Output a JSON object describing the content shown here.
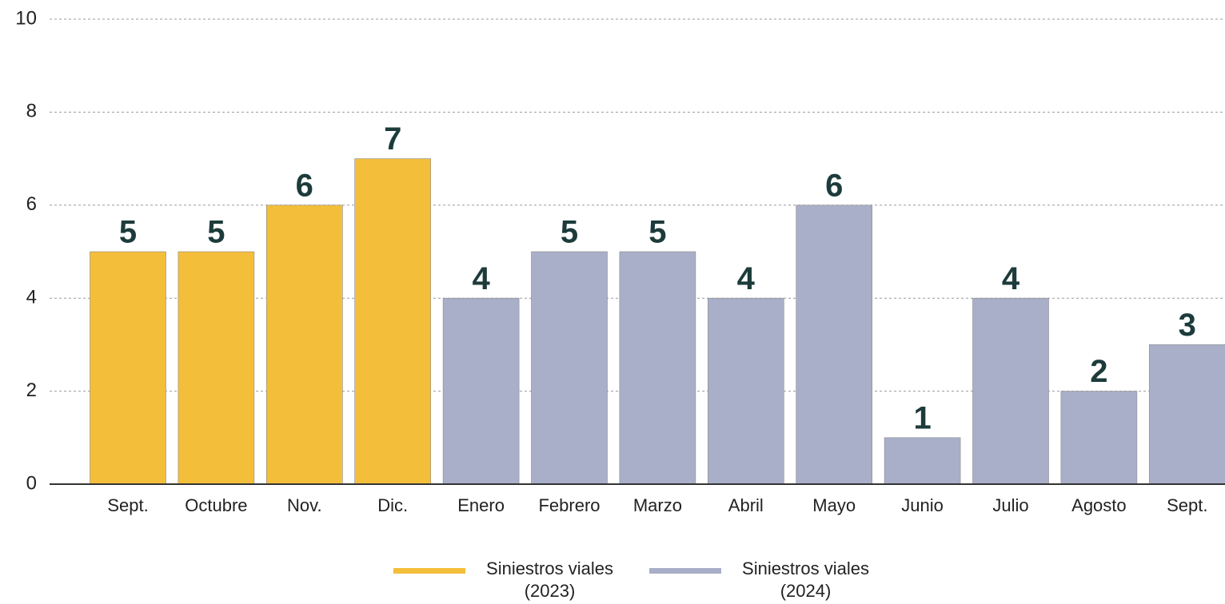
{
  "chart_data": {
    "type": "bar",
    "categories": [
      "Sept.",
      "Octubre",
      "Nov.",
      "Dic.",
      "Enero",
      "Febrero",
      "Marzo",
      "Abril",
      "Mayo",
      "Junio",
      "Julio",
      "Agosto",
      "Sept."
    ],
    "series": [
      {
        "name": "Siniestros viales (2023)",
        "color": "#f3be3a",
        "values": [
          5,
          5,
          6,
          7,
          null,
          null,
          null,
          null,
          null,
          null,
          null,
          null,
          null
        ]
      },
      {
        "name": "Siniestros viales (2024)",
        "color": "#a9afc9",
        "values": [
          null,
          null,
          null,
          null,
          4,
          5,
          5,
          4,
          6,
          1,
          4,
          2,
          3
        ]
      }
    ],
    "ylim": [
      0,
      10
    ],
    "yticks": [
      0,
      2,
      4,
      6,
      8,
      10
    ],
    "grid": true,
    "legend": "bottom"
  }
}
